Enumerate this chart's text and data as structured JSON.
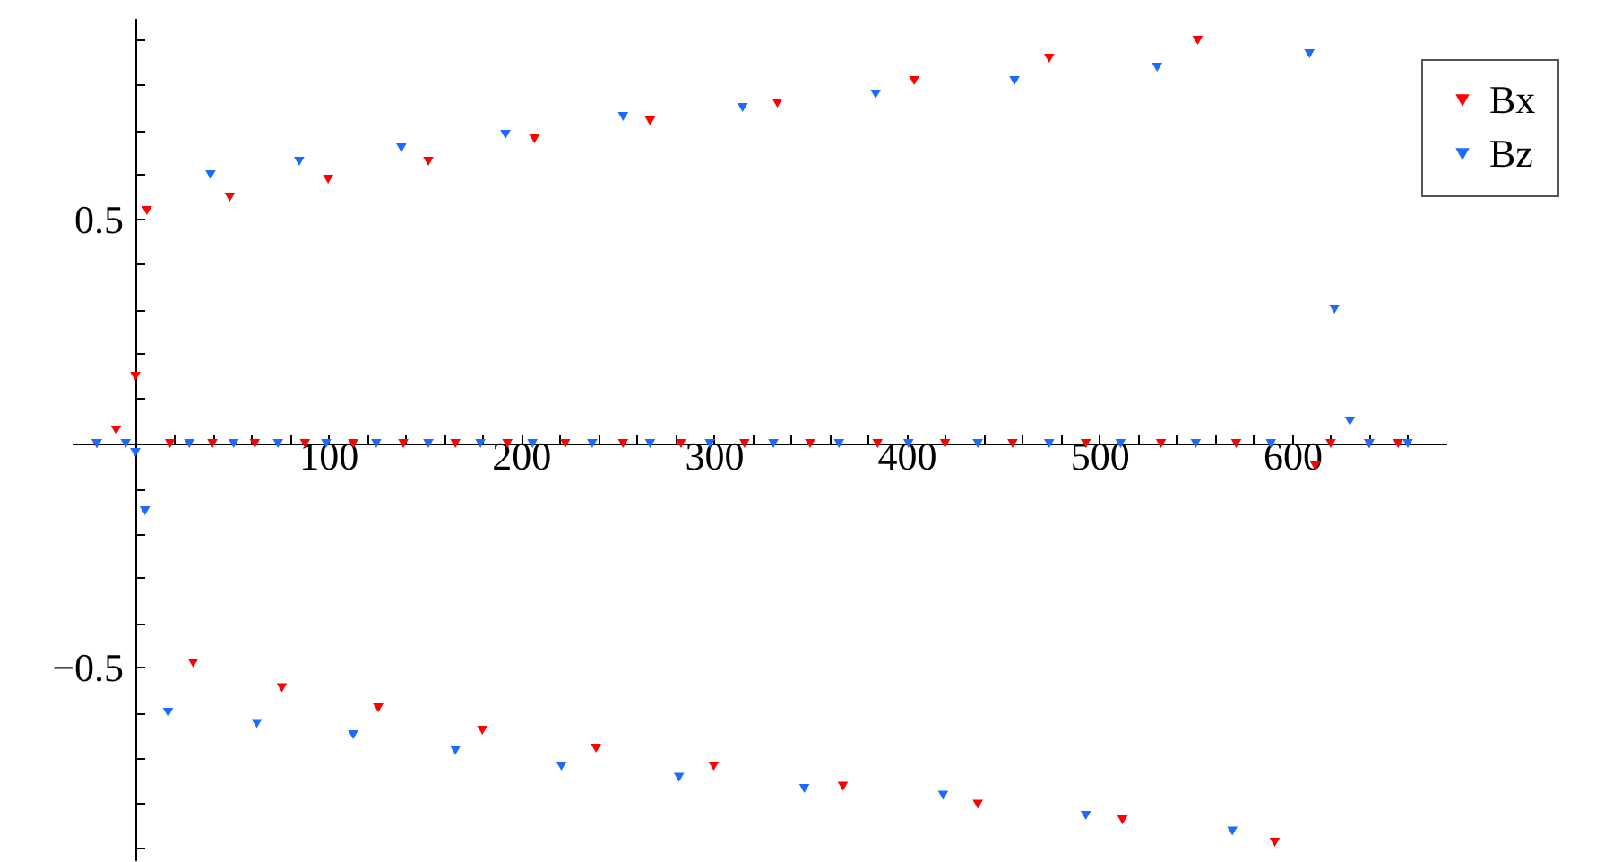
{
  "chart_data": {
    "type": "scatter",
    "marker": "triangle",
    "legend": "top right",
    "grid": false,
    "xlim": [
      -33,
      680
    ],
    "xticks": [
      {
        "value": 20,
        "label": null
      },
      {
        "value": 40,
        "label": null
      },
      {
        "value": 60,
        "label": null
      },
      {
        "value": 80,
        "label": null
      },
      100,
      {
        "value": 120,
        "label": null
      },
      {
        "value": 140,
        "label": null
      },
      {
        "value": 160,
        "label": null
      },
      {
        "value": 180,
        "label": null
      },
      200,
      {
        "value": 220,
        "label": null
      },
      {
        "value": 240,
        "label": null
      },
      {
        "value": 260,
        "label": null
      },
      {
        "value": 280,
        "label": null
      },
      300,
      {
        "value": 320,
        "label": null
      },
      {
        "value": 340,
        "label": null
      },
      {
        "value": 360,
        "label": null
      },
      {
        "value": 380,
        "label": null
      },
      400,
      {
        "value": 420,
        "label": null
      },
      {
        "value": 440,
        "label": null
      },
      {
        "value": 460,
        "label": null
      },
      {
        "value": 480,
        "label": null
      },
      500,
      {
        "value": 520,
        "label": null
      },
      {
        "value": 540,
        "label": null
      },
      {
        "value": 560,
        "label": null
      },
      {
        "value": 580,
        "label": null
      },
      600,
      {
        "value": 620,
        "label": null
      },
      {
        "value": 640,
        "label": null
      },
      {
        "value": 660,
        "label": null
      }
    ],
    "ylim": [
      -0.93,
      0.95
    ],
    "yticks": [
      {
        "value": -0.9,
        "label": null
      },
      {
        "value": -0.8,
        "label": null
      },
      {
        "value": -0.7,
        "label": null
      },
      {
        "value": -0.6,
        "label": null
      },
      {
        "value": -0.5,
        "label": "−0.5"
      },
      {
        "value": -0.4,
        "label": null
      },
      {
        "value": -0.3,
        "label": null
      },
      {
        "value": -0.2,
        "label": null
      },
      {
        "value": -0.1,
        "label": null
      },
      {
        "value": 0.1,
        "label": null
      },
      {
        "value": 0.2,
        "label": null
      },
      {
        "value": 0.3,
        "label": null
      },
      {
        "value": 0.4,
        "label": null
      },
      0.5,
      {
        "value": 0.6,
        "label": null
      },
      {
        "value": 0.7,
        "label": null
      },
      {
        "value": 0.8,
        "label": null
      },
      {
        "value": 0.9,
        "label": null
      }
    ],
    "series": [
      {
        "name": "Bx",
        "color": "#ff0000",
        "x": [
          -20,
          -10,
          0,
          6,
          18,
          30,
          40,
          49,
          62,
          76,
          88,
          100,
          113,
          126,
          139,
          152,
          166,
          180,
          193,
          207,
          223,
          239,
          253,
          267,
          283,
          300,
          316,
          333,
          350,
          367,
          385,
          404,
          420,
          437,
          455,
          474,
          493,
          512,
          532,
          551,
          571,
          591,
          612,
          620,
          640,
          655
        ],
        "values": [
          0,
          0.03,
          0.15,
          0.52,
          0,
          -0.49,
          0,
          0.55,
          0,
          -0.545,
          0,
          0.59,
          0,
          -0.59,
          0,
          0.63,
          0,
          -0.64,
          0,
          0.68,
          0,
          -0.68,
          0,
          0.72,
          0,
          -0.72,
          0,
          0.76,
          0,
          -0.765,
          0,
          0.81,
          0,
          -0.805,
          0,
          0.86,
          0,
          -0.84,
          0,
          0.9,
          0,
          -0.89,
          -0.05,
          0,
          0,
          0
        ]
      },
      {
        "name": "Bz",
        "color": "#1a6bff",
        "x": [
          -20,
          -5,
          0,
          5,
          17,
          28,
          39,
          51,
          63,
          74,
          85,
          99,
          113,
          125,
          138,
          152,
          166,
          179,
          192,
          206,
          221,
          237,
          253,
          267,
          282,
          298,
          315,
          331,
          347,
          365,
          384,
          401,
          419,
          437,
          456,
          474,
          493,
          511,
          530,
          550,
          569,
          589,
          609,
          622,
          630,
          640,
          660
        ],
        "values": [
          0,
          0,
          -0.02,
          -0.15,
          -0.6,
          0,
          0.6,
          0,
          -0.625,
          0,
          0.63,
          0,
          -0.65,
          0,
          0.66,
          0,
          -0.685,
          0,
          0.69,
          0,
          -0.72,
          0,
          0.73,
          0,
          -0.745,
          0,
          0.75,
          0,
          -0.77,
          0,
          0.78,
          0,
          -0.785,
          0,
          0.81,
          0,
          -0.83,
          0,
          0.84,
          0,
          -0.865,
          0,
          0.87,
          0.3,
          0.05,
          0,
          0
        ]
      }
    ]
  }
}
